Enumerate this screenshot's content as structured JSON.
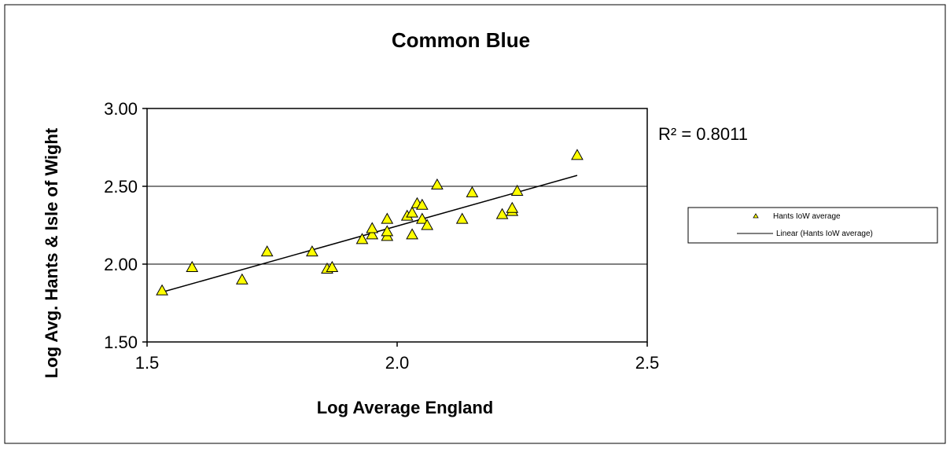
{
  "chart_data": {
    "type": "scatter",
    "title": "Common Blue",
    "xlabel": "Log Average England",
    "ylabel": "Log Avg. Hants & Isle of Wight",
    "xlim": [
      1.5,
      2.5
    ],
    "ylim": [
      1.5,
      3.0
    ],
    "x_ticks": [
      "1.5",
      "2.0",
      "2.5"
    ],
    "y_ticks": [
      "1.50",
      "2.00",
      "2.50",
      "3.00"
    ],
    "grid": "horizontal",
    "legend_position": "right",
    "r_squared_label": "R² = 0.8011",
    "series": [
      {
        "name": "Hants IoW average",
        "marker": "triangle",
        "color": "#ffff00",
        "x": [
          1.53,
          1.59,
          1.69,
          1.74,
          1.83,
          1.86,
          1.87,
          1.93,
          1.95,
          1.95,
          1.98,
          1.98,
          1.98,
          2.02,
          2.03,
          2.03,
          2.04,
          2.05,
          2.05,
          2.06,
          2.08,
          2.13,
          2.15,
          2.21,
          2.23,
          2.23,
          2.24,
          2.36
        ],
        "y": [
          1.83,
          1.98,
          1.9,
          2.08,
          2.08,
          1.97,
          1.98,
          2.16,
          2.19,
          2.23,
          2.18,
          2.21,
          2.29,
          2.31,
          2.33,
          2.19,
          2.39,
          2.38,
          2.29,
          2.25,
          2.51,
          2.29,
          2.46,
          2.32,
          2.34,
          2.36,
          2.47,
          2.7
        ]
      }
    ],
    "trendline": {
      "name": "Linear (Hants IoW average)",
      "x": [
        1.53,
        2.36
      ],
      "y": [
        1.82,
        2.57
      ],
      "color": "#000000"
    }
  }
}
